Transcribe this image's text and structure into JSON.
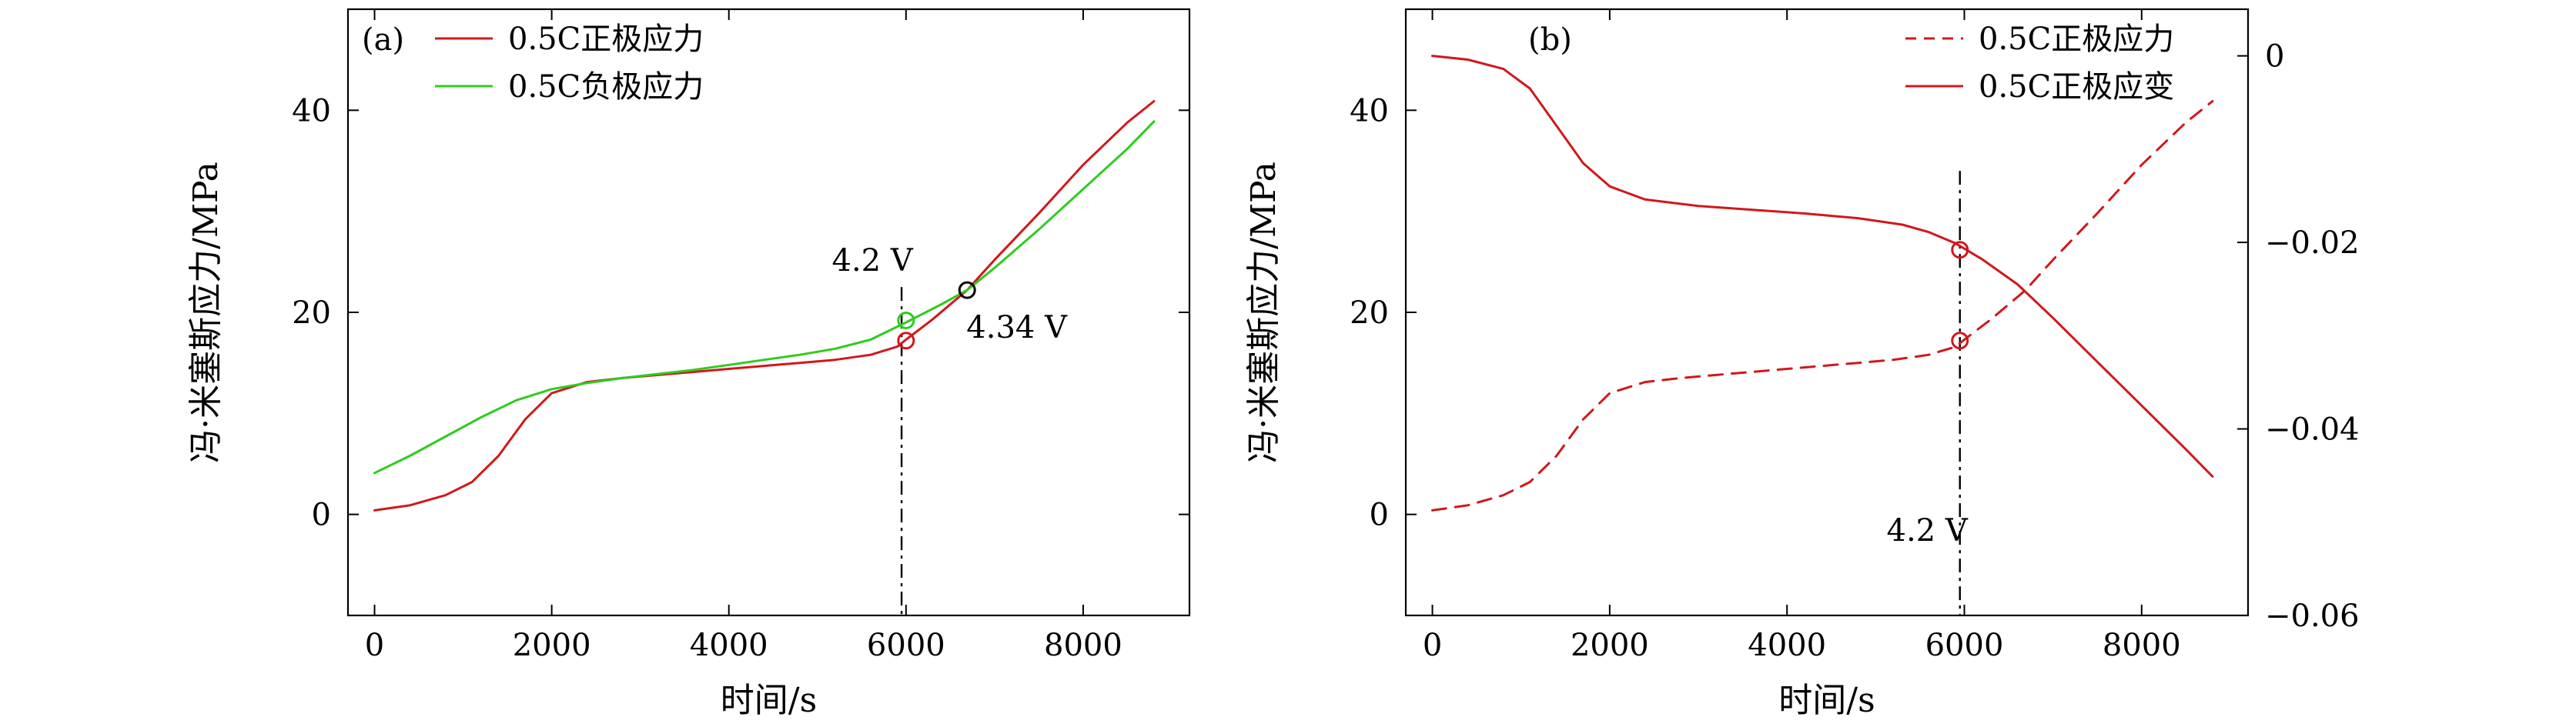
{
  "chart_data": [
    {
      "type": "line",
      "panel_label": "(a)",
      "xlabel": "时间/s",
      "ylabel": "冯·米塞斯应力/MPa",
      "xlim": [
        -300,
        9200
      ],
      "ylim": [
        -10,
        50
      ],
      "xticks": [
        0,
        2000,
        4000,
        6000,
        8000
      ],
      "xtick_labels": [
        "0",
        "2000",
        "4000",
        "6000",
        "8000"
      ],
      "yticks": [
        0,
        20,
        40
      ],
      "ytick_labels": [
        "0",
        "20",
        "40"
      ],
      "legend_position": "top-left",
      "series": [
        {
          "name": "0.5C正极应力",
          "color": "#d0181c",
          "dash": "solid",
          "axis": "left",
          "x": [
            0,
            400,
            800,
            1100,
            1400,
            1700,
            2000,
            2400,
            2800,
            3200,
            3600,
            4000,
            4400,
            4800,
            5200,
            5600,
            5900,
            6000,
            6300,
            6690,
            7000,
            7500,
            8000,
            8500,
            8800
          ],
          "y": [
            0.4,
            0.9,
            1.9,
            3.2,
            5.8,
            9.4,
            12.0,
            13.1,
            13.5,
            13.8,
            14.1,
            14.4,
            14.7,
            15.0,
            15.3,
            15.8,
            16.6,
            17.3,
            19.3,
            22.2,
            25.2,
            29.8,
            34.6,
            38.8,
            40.9
          ]
        },
        {
          "name": "0.5C负极应力",
          "color": "#2ecc1e",
          "dash": "solid",
          "axis": "left",
          "x": [
            0,
            400,
            800,
            1200,
            1600,
            2000,
            2400,
            2800,
            3200,
            3600,
            4000,
            4400,
            4800,
            5200,
            5600,
            6000,
            6400,
            6690,
            7000,
            7500,
            8000,
            8500,
            8800
          ],
          "y": [
            4.1,
            5.8,
            7.7,
            9.6,
            11.3,
            12.4,
            13.0,
            13.5,
            13.9,
            14.3,
            14.8,
            15.3,
            15.8,
            16.4,
            17.3,
            19.0,
            20.8,
            22.2,
            24.4,
            28.2,
            32.2,
            36.2,
            38.9
          ]
        }
      ],
      "markers": [
        {
          "x": 6000,
          "y": 17.2,
          "color": "#d0181c"
        },
        {
          "x": 6000,
          "y": 19.2,
          "color": "#2ecc1e"
        },
        {
          "x": 6690,
          "y": 22.2,
          "color": "#000000"
        }
      ],
      "vline": {
        "x": 5950,
        "y_from": -10,
        "y_to": 22.5
      },
      "annotations": [
        {
          "text": "4.2 V",
          "x": 5620,
          "y": 24.1
        },
        {
          "text": "4.34 V",
          "x": 7250,
          "y": 17.5
        }
      ]
    },
    {
      "type": "line",
      "panel_label": "(b)",
      "xlabel": "时间/s",
      "ylabel": "冯·米塞斯应力/MPa",
      "xlim": [
        -300,
        9200
      ],
      "ylim": [
        -10,
        50
      ],
      "y2lim": [
        -0.06,
        0.005
      ],
      "xticks": [
        0,
        2000,
        4000,
        6000,
        8000
      ],
      "xtick_labels": [
        "0",
        "2000",
        "4000",
        "6000",
        "8000"
      ],
      "yticks": [
        0,
        20,
        40
      ],
      "ytick_labels": [
        "0",
        "20",
        "40"
      ],
      "y2ticks": [
        0,
        -0.02,
        -0.04,
        -0.06
      ],
      "y2tick_labels": [
        "0",
        "−0.02",
        "−0.04",
        "−0.06"
      ],
      "legend_position": "top-right",
      "series": [
        {
          "name": "0.5C正极应力",
          "color": "#d0181c",
          "dash": "dashed",
          "axis": "left",
          "x": [
            0,
            400,
            800,
            1100,
            1400,
            1700,
            2000,
            2400,
            2800,
            3200,
            3600,
            4000,
            4400,
            4800,
            5200,
            5600,
            5900,
            6000,
            6300,
            6690,
            7000,
            7500,
            8000,
            8500,
            8800
          ],
          "y": [
            0.4,
            0.9,
            1.9,
            3.2,
            5.8,
            9.4,
            12.0,
            13.1,
            13.5,
            13.8,
            14.1,
            14.4,
            14.7,
            15.0,
            15.3,
            15.8,
            16.6,
            17.3,
            19.3,
            22.2,
            25.2,
            29.8,
            34.6,
            38.8,
            40.9
          ]
        },
        {
          "name": "0.5C正极应变",
          "color": "#d0181c",
          "dash": "solid",
          "axis": "right",
          "x": [
            0,
            400,
            800,
            1100,
            1400,
            1700,
            2000,
            2400,
            3000,
            3600,
            4200,
            4800,
            5300,
            5600,
            5900,
            6200,
            6600,
            7000,
            7500,
            8000,
            8500,
            8800
          ],
          "y": [
            0.0,
            -0.0004,
            -0.0014,
            -0.0035,
            -0.0075,
            -0.0115,
            -0.014,
            -0.0154,
            -0.0161,
            -0.0165,
            -0.0169,
            -0.0174,
            -0.0181,
            -0.0189,
            -0.0201,
            -0.0218,
            -0.0245,
            -0.0281,
            -0.0328,
            -0.0375,
            -0.0422,
            -0.0451
          ]
        }
      ],
      "markers": [
        {
          "x": 5950,
          "y": 17.2,
          "axis": "left",
          "color": "#d0181c"
        },
        {
          "x": 5950,
          "y": -0.0208,
          "axis": "right",
          "color": "#d0181c"
        }
      ],
      "vline": {
        "x": 5950,
        "y_from": -10,
        "y_to": 34
      },
      "annotations": [
        {
          "text": "4.2 V",
          "x": 5580,
          "y": -2.6
        }
      ]
    }
  ]
}
